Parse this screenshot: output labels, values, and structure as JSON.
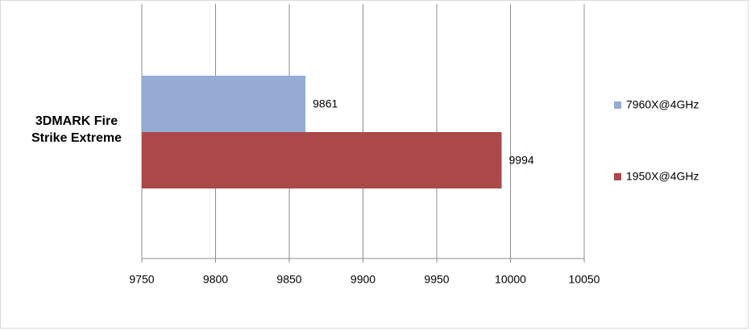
{
  "chart_data": {
    "type": "hbar",
    "categories": [
      "3DMARK Fire Strike Extreme"
    ],
    "series": [
      {
        "name": "7960X@4GHz",
        "color": "#95abd4",
        "values": [
          9861
        ]
      },
      {
        "name": "1950X@4GHz",
        "color": "#ab4848",
        "values": [
          9994
        ]
      }
    ],
    "xlim": [
      9750,
      10050
    ],
    "xticks": [
      9750,
      9800,
      9850,
      9900,
      9950,
      10000,
      10050
    ],
    "grid": true,
    "legend": "right"
  }
}
